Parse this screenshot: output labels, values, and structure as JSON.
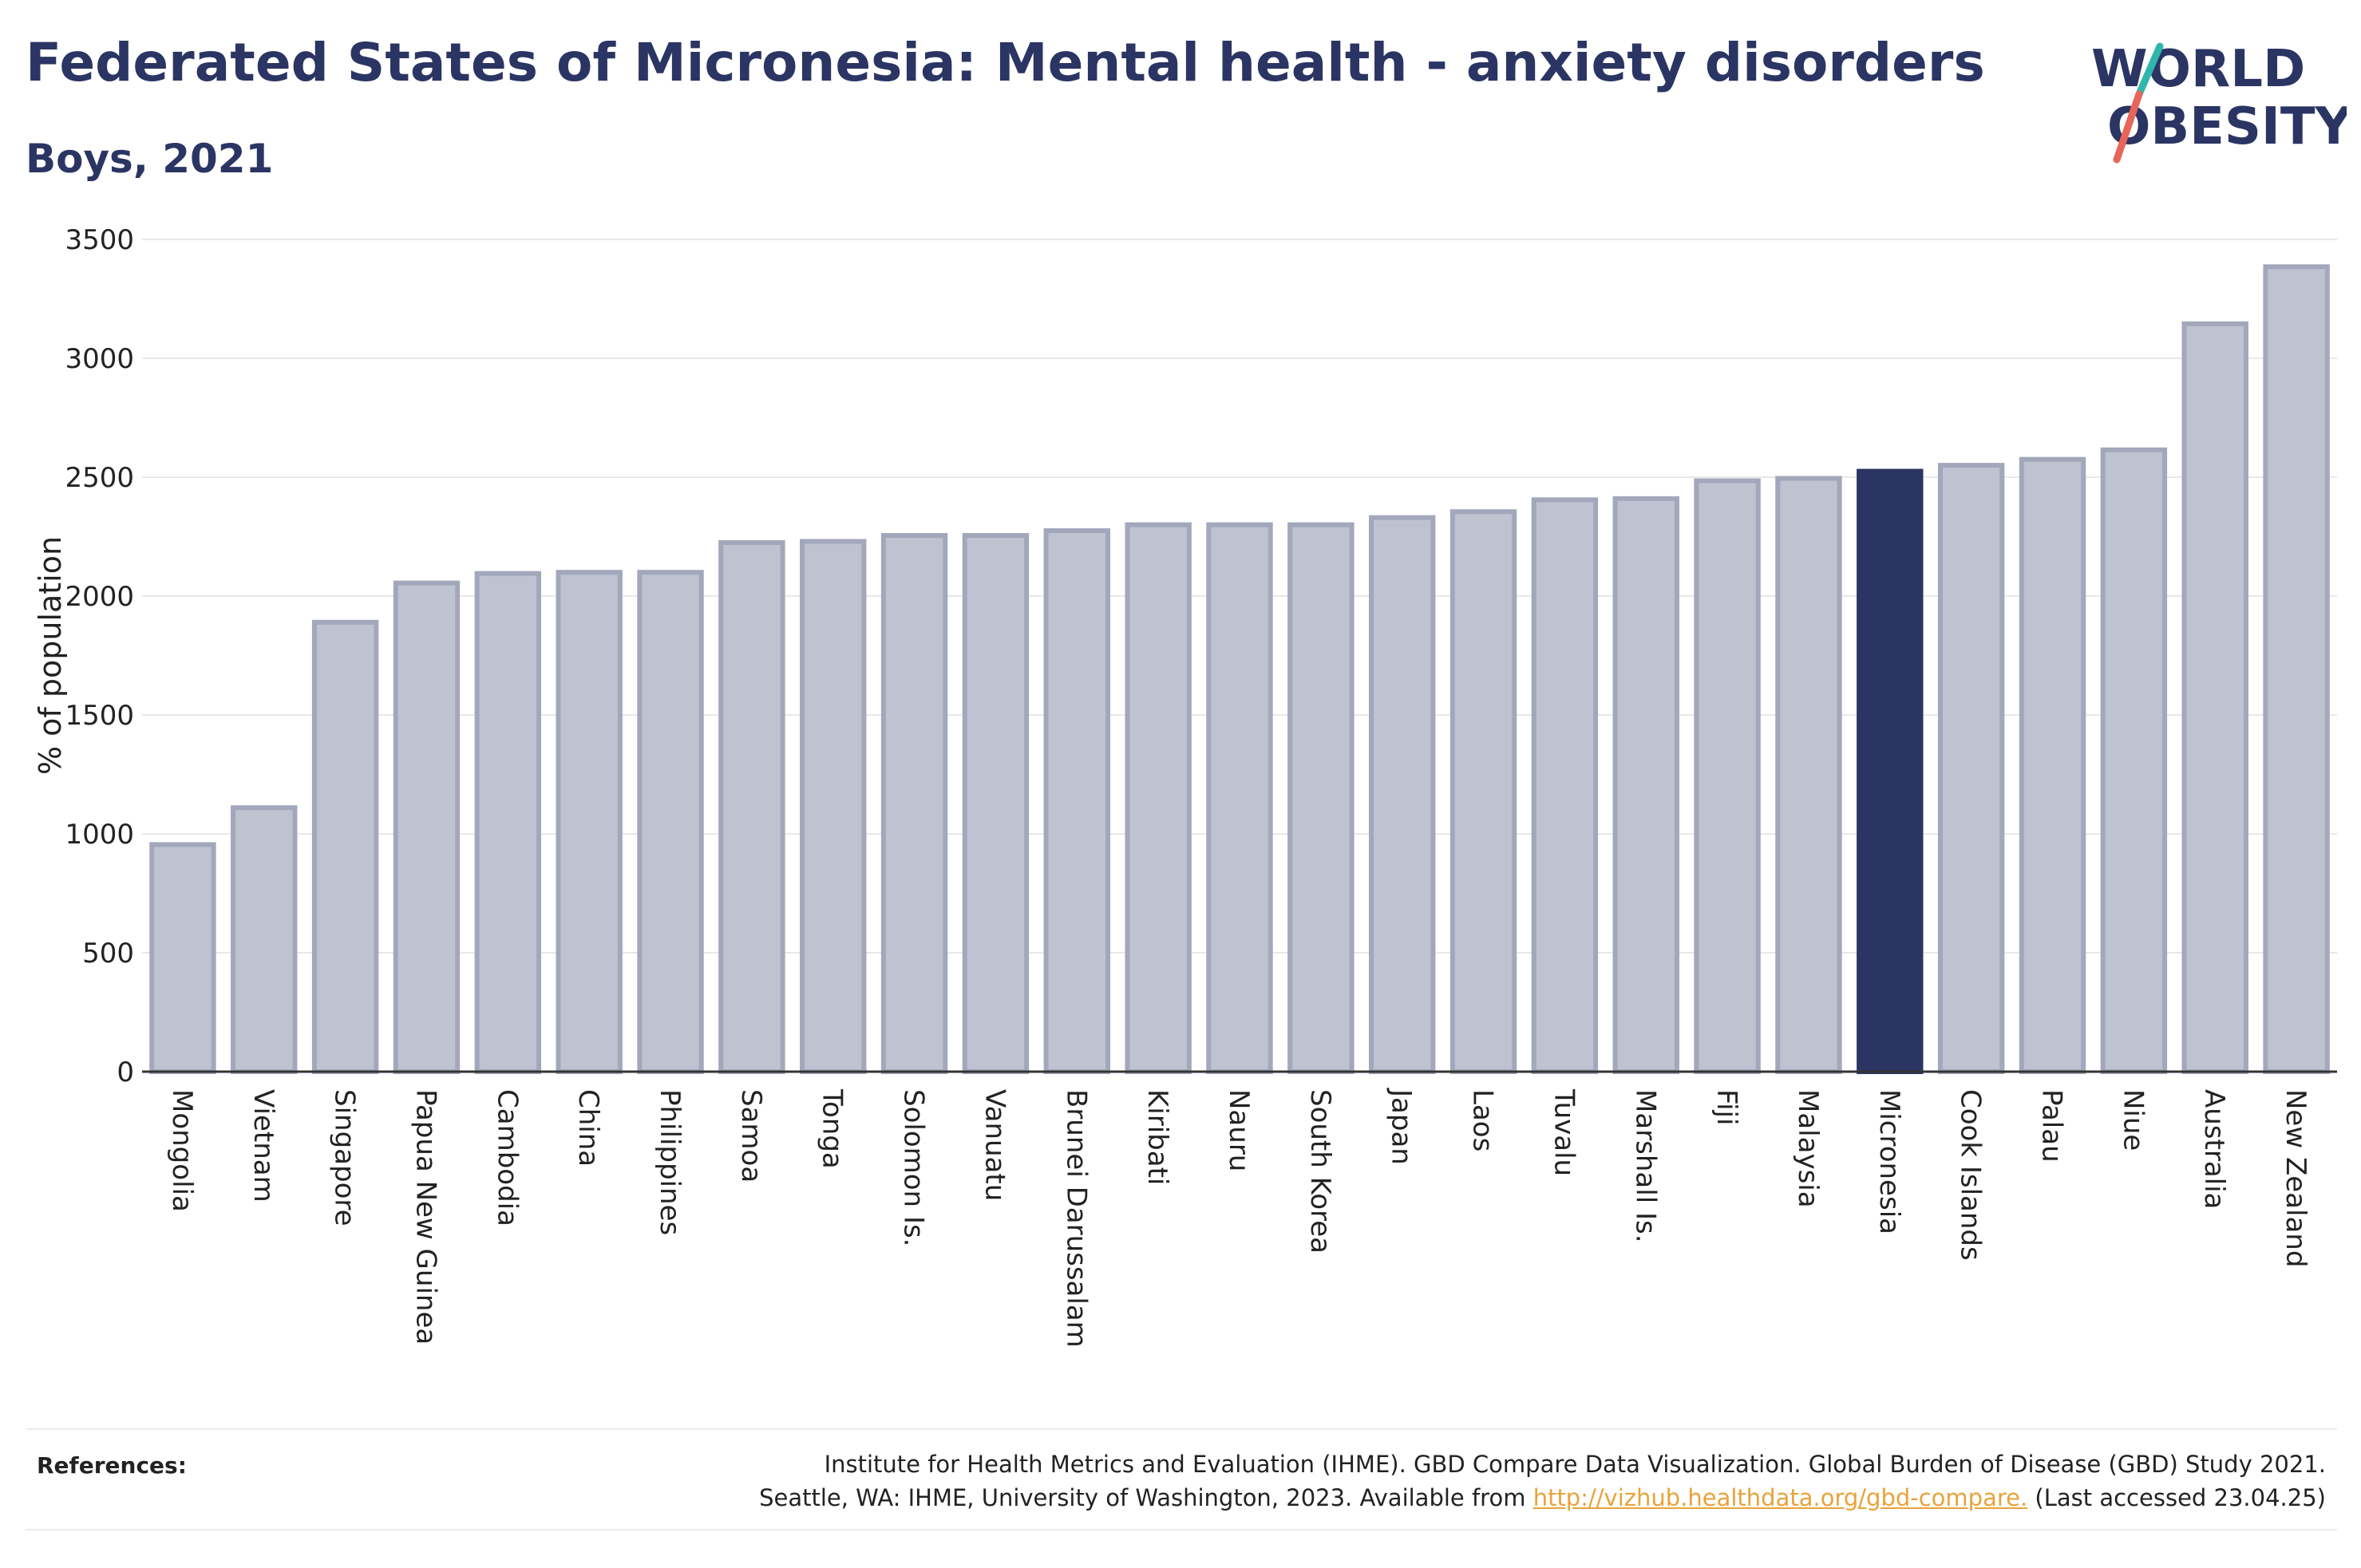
{
  "header": {
    "title": "Federated States of Micronesia: Mental health - anxiety disorders",
    "subtitle": "Boys, 2021"
  },
  "logo": {
    "line1": "WORLD",
    "line2": "OBESITY",
    "slash_colors": [
      "#2fb6ac",
      "#e8655a"
    ]
  },
  "colors": {
    "bar": "#bfc2d0",
    "bar_border": "#a2a7bb",
    "highlight": "#2b3563",
    "text": "#2b3563",
    "grid": "#e8e8e8"
  },
  "chart_data": {
    "type": "bar",
    "categories": [
      "Mongolia",
      "Vietnam",
      "Singapore",
      "Papua New Guinea",
      "Cambodia",
      "China",
      "Philippines",
      "Samoa",
      "Tonga",
      "Solomon Is.",
      "Vanuatu",
      "Brunei Darussalam",
      "Kiribati",
      "Nauru",
      "South Korea",
      "Japan",
      "Laos",
      "Tuvalu",
      "Marshall Is.",
      "Fiji",
      "Malaysia",
      "Micronesia",
      "Cook Islands",
      "Palau",
      "Niue",
      "Australia",
      "New Zealand"
    ],
    "values": [
      955,
      1110,
      1890,
      2055,
      2095,
      2100,
      2100,
      2225,
      2230,
      2255,
      2255,
      2275,
      2300,
      2300,
      2300,
      2330,
      2355,
      2405,
      2410,
      2485,
      2495,
      2525,
      2550,
      2575,
      2615,
      3145,
      3385
    ],
    "highlight": "Micronesia",
    "ylabel": "% of population",
    "ylim": [
      0,
      3500
    ],
    "yticks": [
      0,
      500,
      1000,
      1500,
      2000,
      2500,
      3000,
      3500
    ],
    "grid": true,
    "legend": "none"
  },
  "references": {
    "label": "References:",
    "line1": "Institute for Health Metrics and Evaluation (IHME). GBD Compare Data Visualization. Global Burden of Disease (GBD) Study 2021.",
    "line2_prefix": "Seattle, WA: IHME, University of Washington, 2023. Available from",
    "link": "http://vizhub.healthdata.org/gbd-compare.",
    "line2_suffix": "(Last accessed 23.04.25)"
  }
}
